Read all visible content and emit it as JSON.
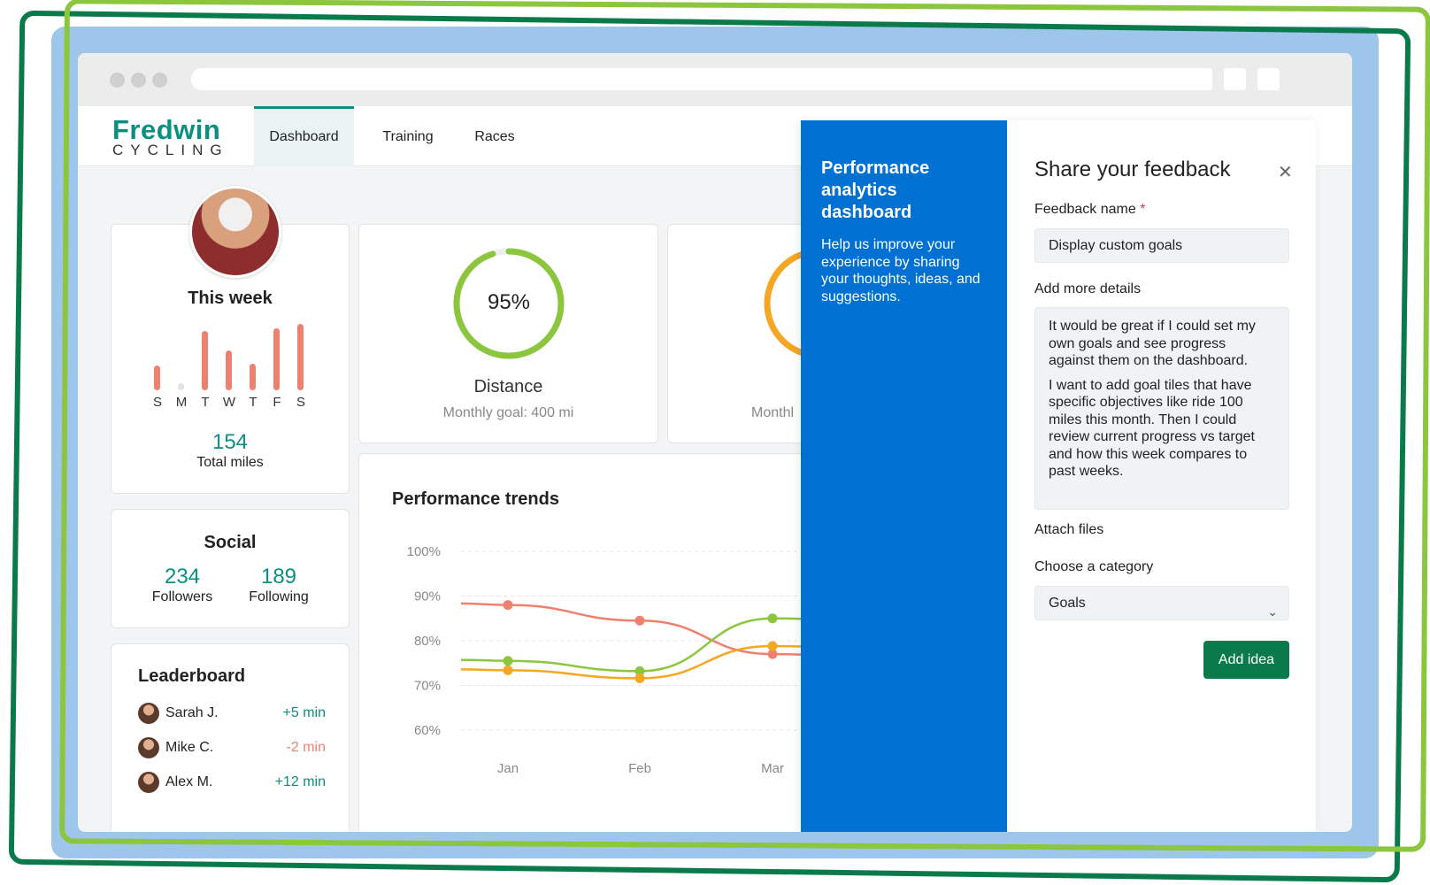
{
  "brand": {
    "name": "Fredwin",
    "tagline": "CYCLING"
  },
  "nav": {
    "tabs": [
      {
        "label": "Dashboard",
        "active": true
      },
      {
        "label": "Training"
      },
      {
        "label": "Races"
      }
    ]
  },
  "this_week": {
    "title": "This week",
    "days": [
      "S",
      "M",
      "T",
      "W",
      "T",
      "F",
      "S"
    ],
    "bar_levels": [
      0.38,
      0.05,
      0.9,
      0.6,
      0.4,
      0.93,
      1.0
    ],
    "total": "154",
    "total_label": "Total miles"
  },
  "distance": {
    "percent_label": "95%",
    "progress": 0.95,
    "title": "Distance",
    "goal": "Monthly goal: 400 mi",
    "ring_color": "#8cc63f"
  },
  "monthly_card": {
    "partial_text": "Monthl",
    "ring_color": "#f5a623"
  },
  "social": {
    "title": "Social",
    "followers": "234",
    "followers_label": "Followers",
    "following": "189",
    "following_label": "Following"
  },
  "leaderboard": {
    "title": "Leaderboard",
    "rows": [
      {
        "name": "Sarah J.",
        "delta": "+5 min",
        "trend": "up"
      },
      {
        "name": "Mike C.",
        "delta": "-2 min",
        "trend": "down"
      },
      {
        "name": "Alex M.",
        "delta": "+12 min",
        "trend": "up"
      }
    ]
  },
  "chart_data": {
    "type": "line",
    "title": "Performance trends",
    "categories": [
      "Jan",
      "Feb",
      "Mar"
    ],
    "yticks": [
      "100%",
      "90%",
      "80%",
      "70%",
      "60%"
    ],
    "ylim": [
      60,
      100
    ],
    "grid": true,
    "series": [
      {
        "values": [
          88,
          84.5,
          77
        ],
        "color": "#f0806e"
      },
      {
        "values": [
          75.5,
          73.2,
          85
        ],
        "color": "#8cc63f"
      },
      {
        "values": [
          73.4,
          71.6,
          78.8
        ],
        "color": "#f5a623"
      }
    ]
  },
  "feedback_intro": {
    "title": "Performance analytics dashboard",
    "text": "Help us improve your experience by sharing your thoughts, ideas, and suggestions."
  },
  "feedback_form": {
    "title": "Share your feedback",
    "close_icon": "close-icon",
    "name_label": "Feedback name",
    "required_mark": "*",
    "name_value": "Display custom goals",
    "details_label": "Add more details",
    "details_p1": "It would be great if I could set my own goals and see progress against them on the dashboard.",
    "details_p2": "I want to add goal tiles that have specific objectives like ride 100 miles this month. Then I could review current progress vs target and how this week compares to past weeks.",
    "attach_label": "Attach files",
    "category_label": "Choose a category",
    "category_value": "Goals",
    "submit_label": "Add idea"
  },
  "colors": {
    "teal": "#0b8f82",
    "blue_panel": "#0070d2",
    "button_green": "#0b7a4b",
    "negative": "#f0806e"
  }
}
